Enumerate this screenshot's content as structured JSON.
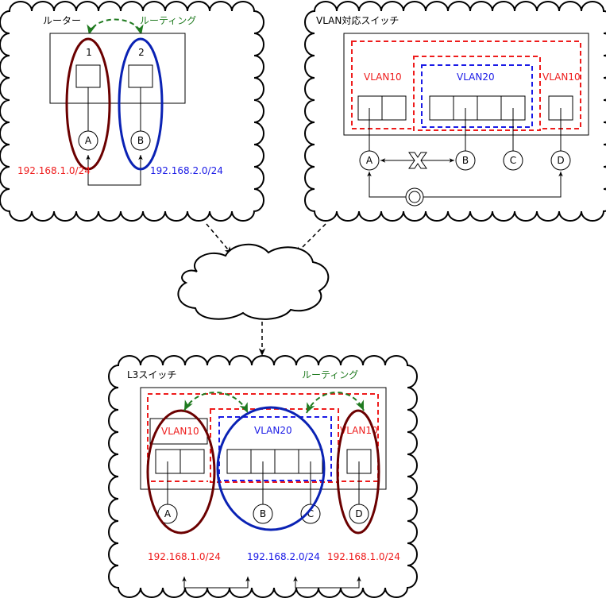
{
  "colors": {
    "red": "#ee1c1c",
    "blue": "#1a1ae6",
    "green": "#1f7a1f",
    "maroon": "#6b0000",
    "navy": "#0a22b4",
    "black": "#000000"
  },
  "router": {
    "title": "ルーター",
    "routing_label": "ルーティング",
    "port1": "1",
    "port2": "2",
    "node_a": "A",
    "node_b": "B",
    "subnet_a": "192.168.1.0/24",
    "subnet_b": "192.168.2.0/24"
  },
  "vlan_switch": {
    "title": "VLAN対応スイッチ",
    "vlan_left": "VLAN10",
    "vlan_middle": "VLAN20",
    "vlan_right": "VLAN10",
    "node_a": "A",
    "node_b": "B",
    "node_c": "C",
    "node_d": "D"
  },
  "l3_switch": {
    "title": "L3スイッチ",
    "routing_label": "ルーティング",
    "vlan_left": "VLAN10",
    "vlan_middle": "VLAN20",
    "vlan_right": "VLAN10",
    "node_a": "A",
    "node_b": "B",
    "node_c": "C",
    "node_d": "D",
    "subnet_left": "192.168.1.0/24",
    "subnet_middle": "192.168.2.0/24",
    "subnet_right": "192.168.1.0/24"
  }
}
